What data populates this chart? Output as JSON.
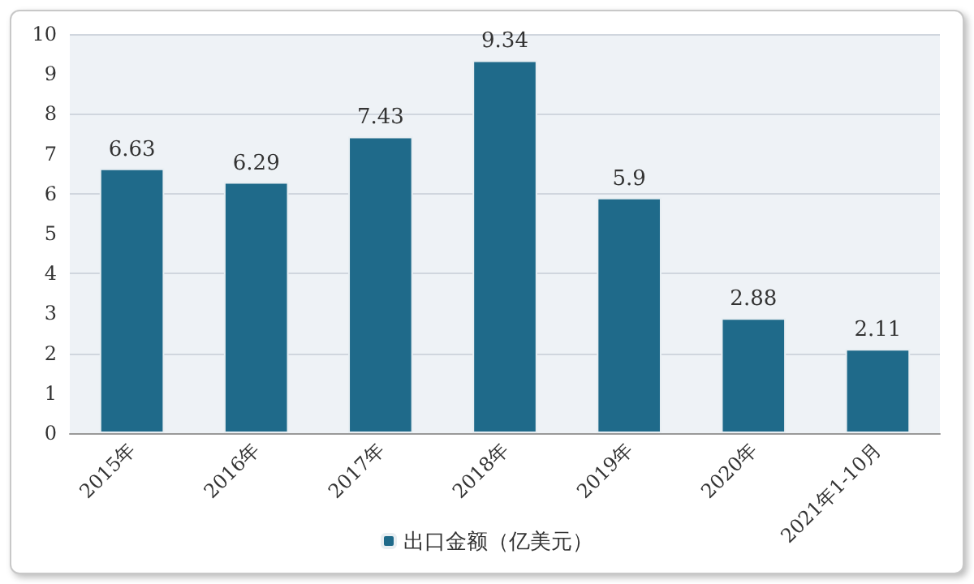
{
  "chart_data": {
    "type": "bar",
    "categories": [
      "2015年",
      "2016年",
      "2017年",
      "2018年",
      "2019年",
      "2020年",
      "2021年1-10月"
    ],
    "series": [
      {
        "name": "出口金额（亿美元）",
        "color": "#1f6a8a",
        "values": [
          6.63,
          6.29,
          7.43,
          9.34,
          5.9,
          2.88,
          2.11
        ]
      }
    ],
    "ylim": [
      0,
      10
    ],
    "yticks": [
      0,
      1,
      2,
      3,
      4,
      5,
      6,
      7,
      8,
      9,
      10
    ],
    "grid": "y",
    "legend": "bottom",
    "data_labels": true
  }
}
